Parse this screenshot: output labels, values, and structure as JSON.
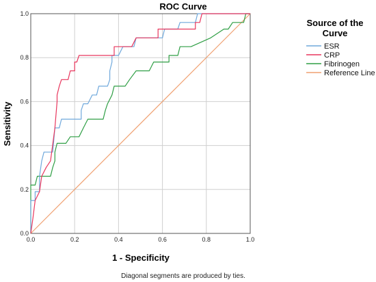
{
  "chart_data": {
    "type": "line",
    "title": "ROC Curve",
    "xlabel": "1 - Specificity",
    "ylabel": "Sensitivity",
    "xlim": [
      0,
      1
    ],
    "ylim": [
      0,
      1
    ],
    "xticks": [
      "0.0",
      "0.2",
      "0.4",
      "0.6",
      "0.8",
      "1.0"
    ],
    "yticks": [
      "0.0",
      "0.2",
      "0.4",
      "0.6",
      "0.8",
      "1.0"
    ],
    "grid": true,
    "legend": {
      "title_line1": "Source of the",
      "title_line2": "Curve",
      "placement": "right"
    },
    "footnote": "Diagonal segments are produced by ties.",
    "series": [
      {
        "name": "ESR",
        "color": "#6fa8dc",
        "points": [
          [
            0,
            0
          ],
          [
            0,
            0.15
          ],
          [
            0.02,
            0.15
          ],
          [
            0.02,
            0.19
          ],
          [
            0.04,
            0.19
          ],
          [
            0.04,
            0.26
          ],
          [
            0.05,
            0.33
          ],
          [
            0.06,
            0.37
          ],
          [
            0.1,
            0.37
          ],
          [
            0.11,
            0.48
          ],
          [
            0.13,
            0.48
          ],
          [
            0.14,
            0.52
          ],
          [
            0.23,
            0.52
          ],
          [
            0.23,
            0.56
          ],
          [
            0.24,
            0.59
          ],
          [
            0.26,
            0.59
          ],
          [
            0.28,
            0.63
          ],
          [
            0.3,
            0.63
          ],
          [
            0.31,
            0.67
          ],
          [
            0.35,
            0.67
          ],
          [
            0.36,
            0.7
          ],
          [
            0.36,
            0.74
          ],
          [
            0.37,
            0.78
          ],
          [
            0.37,
            0.81
          ],
          [
            0.4,
            0.81
          ],
          [
            0.42,
            0.85
          ],
          [
            0.47,
            0.85
          ],
          [
            0.48,
            0.89
          ],
          [
            0.6,
            0.89
          ],
          [
            0.61,
            0.93
          ],
          [
            0.67,
            0.93
          ],
          [
            0.68,
            0.96
          ],
          [
            0.75,
            0.96
          ],
          [
            0.76,
            1.0
          ],
          [
            1.0,
            1.0
          ]
        ]
      },
      {
        "name": "CRP",
        "color": "#e8365d",
        "points": [
          [
            0,
            0
          ],
          [
            0.01,
            0.07
          ],
          [
            0.02,
            0.15
          ],
          [
            0.04,
            0.19
          ],
          [
            0.05,
            0.26
          ],
          [
            0.07,
            0.3
          ],
          [
            0.09,
            0.33
          ],
          [
            0.11,
            0.48
          ],
          [
            0.12,
            0.6
          ],
          [
            0.12,
            0.63
          ],
          [
            0.13,
            0.67
          ],
          [
            0.14,
            0.7
          ],
          [
            0.17,
            0.7
          ],
          [
            0.18,
            0.74
          ],
          [
            0.2,
            0.74
          ],
          [
            0.2,
            0.78
          ],
          [
            0.21,
            0.78
          ],
          [
            0.22,
            0.81
          ],
          [
            0.38,
            0.81
          ],
          [
            0.38,
            0.85
          ],
          [
            0.46,
            0.85
          ],
          [
            0.48,
            0.89
          ],
          [
            0.58,
            0.89
          ],
          [
            0.58,
            0.93
          ],
          [
            0.75,
            0.93
          ],
          [
            0.75,
            0.96
          ],
          [
            0.77,
            0.96
          ],
          [
            0.78,
            1.0
          ],
          [
            1.0,
            1.0
          ]
        ]
      },
      {
        "name": "Fibrinogen",
        "color": "#2e9e44",
        "points": [
          [
            0,
            0
          ],
          [
            0,
            0.22
          ],
          [
            0.02,
            0.22
          ],
          [
            0.03,
            0.26
          ],
          [
            0.09,
            0.26
          ],
          [
            0.1,
            0.3
          ],
          [
            0.11,
            0.33
          ],
          [
            0.11,
            0.37
          ],
          [
            0.12,
            0.41
          ],
          [
            0.16,
            0.41
          ],
          [
            0.18,
            0.44
          ],
          [
            0.22,
            0.44
          ],
          [
            0.24,
            0.48
          ],
          [
            0.26,
            0.52
          ],
          [
            0.33,
            0.52
          ],
          [
            0.34,
            0.56
          ],
          [
            0.35,
            0.59
          ],
          [
            0.37,
            0.63
          ],
          [
            0.38,
            0.67
          ],
          [
            0.43,
            0.67
          ],
          [
            0.45,
            0.7
          ],
          [
            0.48,
            0.74
          ],
          [
            0.54,
            0.74
          ],
          [
            0.56,
            0.78
          ],
          [
            0.63,
            0.78
          ],
          [
            0.63,
            0.81
          ],
          [
            0.67,
            0.81
          ],
          [
            0.68,
            0.85
          ],
          [
            0.73,
            0.85
          ],
          [
            0.82,
            0.89
          ],
          [
            0.88,
            0.93
          ],
          [
            0.9,
            0.93
          ],
          [
            0.92,
            0.96
          ],
          [
            0.97,
            0.96
          ],
          [
            0.98,
            1.0
          ],
          [
            1.0,
            1.0
          ]
        ]
      },
      {
        "name": "Reference Line",
        "color": "#f0a070",
        "points": [
          [
            0,
            0
          ],
          [
            1,
            1
          ]
        ]
      }
    ]
  }
}
